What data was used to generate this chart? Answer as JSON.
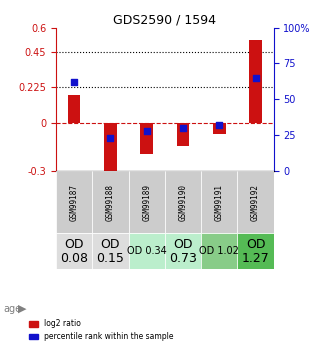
{
  "title": "GDS2590 / 1594",
  "samples": [
    "GSM99187",
    "GSM99188",
    "GSM99189",
    "GSM99190",
    "GSM99191",
    "GSM99192"
  ],
  "log2_ratio": [
    0.18,
    -0.38,
    -0.19,
    -0.14,
    -0.065,
    0.52
  ],
  "percentile_rank": [
    62,
    23,
    28,
    30,
    32,
    65
  ],
  "ylim_left": [
    -0.3,
    0.6
  ],
  "ylim_right": [
    0,
    100
  ],
  "yticks_left": [
    -0.3,
    0,
    0.225,
    0.45,
    0.6
  ],
  "yticks_right": [
    0,
    25,
    50,
    75,
    100
  ],
  "hlines_dotted": [
    0.225,
    0.45
  ],
  "hline_dashed": 0,
  "bar_color": "#cc1111",
  "dot_color": "#1111cc",
  "background_color": "#ffffff",
  "age_labels": [
    "OD\n0.08",
    "OD\n0.15",
    "OD 0.34",
    "OD\n0.73",
    "OD 1.02",
    "OD\n1.27"
  ],
  "age_bg_colors": [
    "#dddddd",
    "#dddddd",
    "#bbeecc",
    "#bbeecc",
    "#88cc88",
    "#55bb55"
  ],
  "age_font_sizes": [
    9,
    9,
    7,
    9,
    7,
    9
  ],
  "legend_log2": "log2 ratio",
  "legend_pct": "percentile rank within the sample",
  "left_axis_color": "#cc1111",
  "right_axis_color": "#1111cc"
}
